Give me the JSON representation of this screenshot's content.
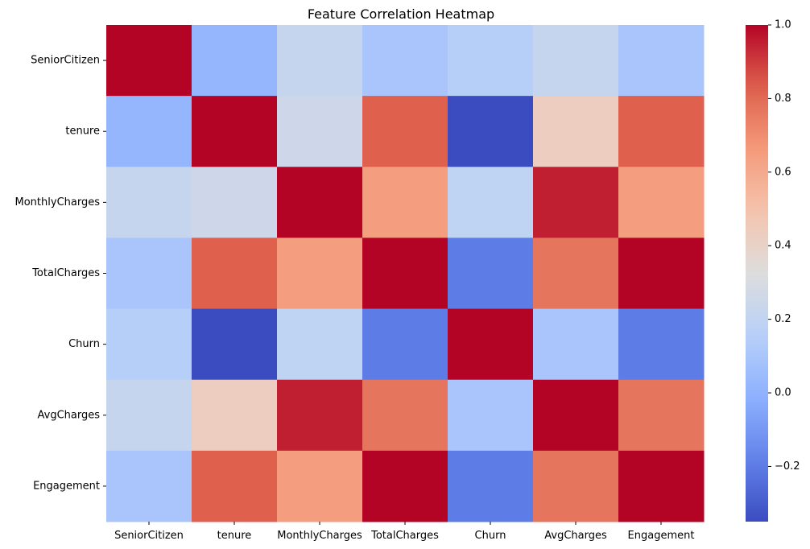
{
  "chart_data": {
    "type": "heatmap",
    "title": "Feature Correlation Heatmap",
    "xlabel": "",
    "ylabel": "",
    "x_categories": [
      "SeniorCitizen",
      "tenure",
      "MonthlyCharges",
      "TotalCharges",
      "Churn",
      "AvgCharges",
      "Engagement"
    ],
    "y_categories": [
      "SeniorCitizen",
      "tenure",
      "MonthlyCharges",
      "TotalCharges",
      "Churn",
      "AvgCharges",
      "Engagement"
    ],
    "values": [
      [
        1.0,
        0.02,
        0.22,
        0.1,
        0.15,
        0.22,
        0.1
      ],
      [
        0.02,
        1.0,
        0.25,
        0.83,
        -0.35,
        0.43,
        0.83
      ],
      [
        0.22,
        0.25,
        1.0,
        0.65,
        0.19,
        0.95,
        0.65
      ],
      [
        0.1,
        0.83,
        0.65,
        1.0,
        -0.2,
        0.77,
        1.0
      ],
      [
        0.15,
        -0.35,
        0.19,
        -0.2,
        1.0,
        0.1,
        -0.2
      ],
      [
        0.22,
        0.43,
        0.95,
        0.77,
        0.1,
        1.0,
        0.77
      ],
      [
        0.1,
        0.83,
        0.65,
        1.0,
        -0.2,
        0.77,
        1.0
      ]
    ],
    "colormap": "coolwarm",
    "vmin": -0.35,
    "vmax": 1.0,
    "colorbar_ticks": [
      "−0.2",
      "0.0",
      "0.2",
      "0.4",
      "0.6",
      "0.8",
      "1.0"
    ],
    "colorbar_tick_values": [
      -0.2,
      0.0,
      0.2,
      0.4,
      0.6,
      0.8,
      1.0
    ],
    "grid": false,
    "legend": "colorbar-right"
  }
}
